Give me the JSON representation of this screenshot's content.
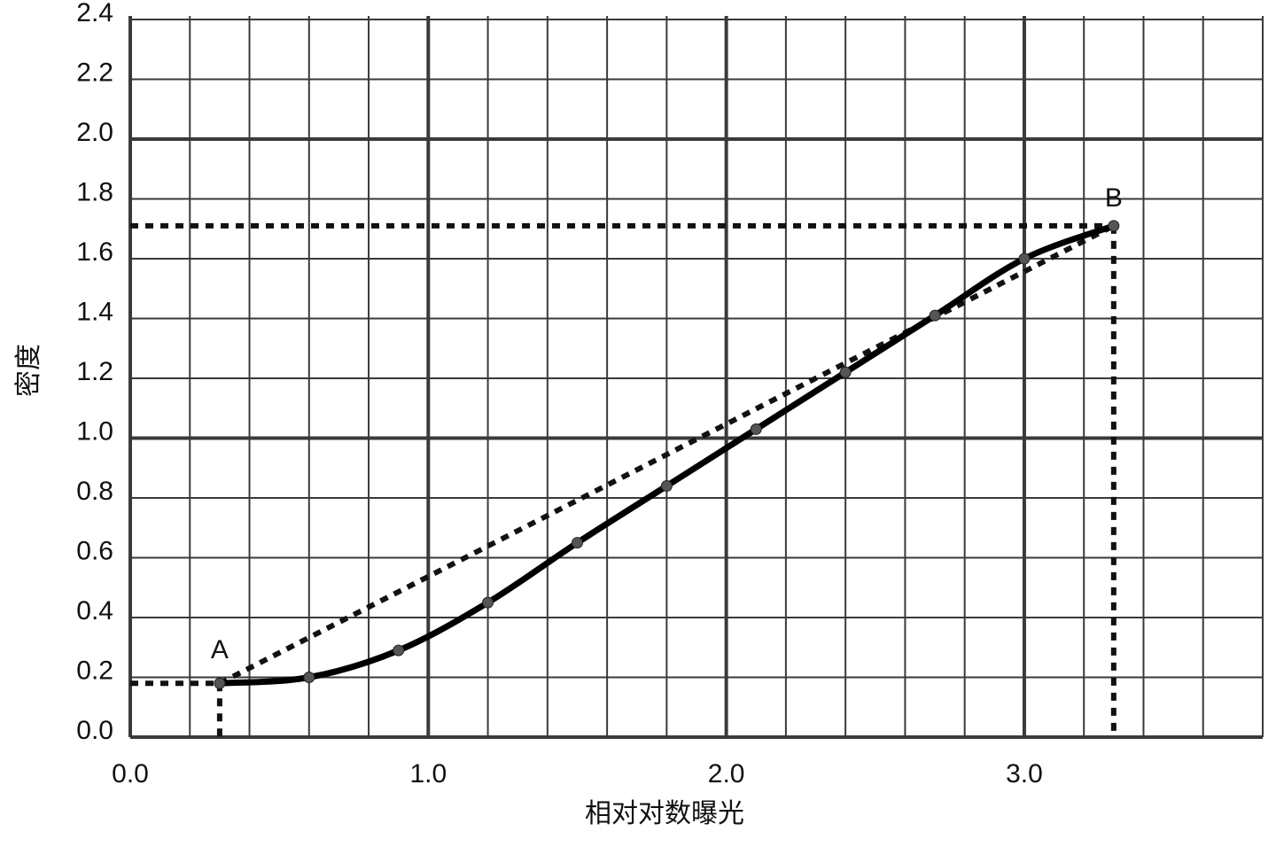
{
  "chart_data": {
    "type": "line",
    "x_label": "相对对数曝光",
    "y_label": "密度",
    "x": [
      0.3,
      0.6,
      0.9,
      1.2,
      1.5,
      1.8,
      2.1,
      2.4,
      2.7,
      3.0,
      3.3
    ],
    "series": [
      {
        "color": "#000000",
        "values": [
          0.18,
          0.2,
          0.29,
          0.45,
          0.65,
          0.84,
          1.03,
          1.22,
          1.41,
          1.6,
          1.71
        ]
      }
    ],
    "annotations": [
      "A",
      "B"
    ],
    "xlim": [
      0,
      3.8
    ],
    "ylim": [
      0,
      2.4
    ],
    "xticks": [
      {
        "value": 0,
        "label": "0.0"
      },
      {
        "value": 1,
        "label": "1.0"
      },
      {
        "value": 2,
        "label": "2.0"
      },
      {
        "value": 3,
        "label": "3.0"
      }
    ],
    "x_minor_ticks": [
      0.2,
      0.4,
      0.6,
      0.8,
      1.2,
      1.4,
      1.6,
      1.8,
      2.2,
      2.4,
      2.6,
      2.8,
      3.2,
      3.4,
      3.6,
      3.8
    ],
    "yticks": [
      {
        "value": 0,
        "label": "0.0"
      },
      {
        "value": 0.2,
        "label": "0.2"
      },
      {
        "value": 0.4,
        "label": "0.4"
      },
      {
        "value": 0.6,
        "label": "0.6"
      },
      {
        "value": 0.8,
        "label": "0.8"
      },
      {
        "value": 1,
        "label": "1.0"
      },
      {
        "value": 1.2,
        "label": "1.2"
      },
      {
        "value": 1.4,
        "label": "1.4"
      },
      {
        "value": 1.6,
        "label": "1.6"
      },
      {
        "value": 1.8,
        "label": "1.8"
      },
      {
        "value": 2,
        "label": "2.0"
      },
      {
        "value": 2.2,
        "label": "2.2"
      },
      {
        "value": 2.4,
        "label": "2.4"
      }
    ],
    "grid": true,
    "grid_color": "#3a3a3a"
  }
}
